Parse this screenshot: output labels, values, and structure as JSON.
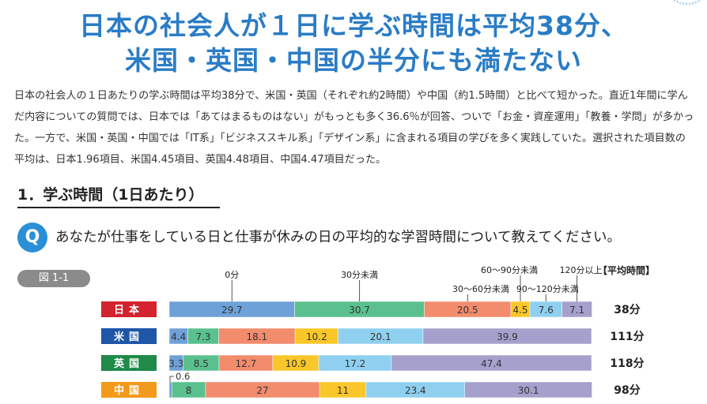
{
  "headline": {
    "line1": "日本の社会人が１日に学ぶ時間は平均38分、",
    "line2": "米国・英国・中国の半分にも満たない"
  },
  "intro": "日本の社会人の１日あたりの学ぶ時間は平均38分で、米国・英国（それぞれ約2時間）や中国（約1.5時間）と比べて短かった。直近1年間に学んだ内容についての質問では、日本では「あてはまるものはない」がもっとも多く36.6％が回答、ついで「お金・資産運用」「教養・学問」が多かった。一方で、米国・英国・中国では「IT系」「ビジネススキル系」「デザイン系」に含まれる項目の学びを多く実践していた。選択された項目数の平均は、日本1.96項目、米国4.45項目、英国4.48項目、中国4.47項目だった。",
  "section": {
    "heading": "1．学ぶ時間（1日あたり）"
  },
  "question": {
    "badge": "Q",
    "text": "あなたが仕事をしている日と仕事が休みの日の平均的な学習時間について教えてください。"
  },
  "figure": {
    "label": "図 1-1"
  },
  "colors": {
    "flag_red": "#d2232e",
    "flag_blue": "#1f56a8",
    "flag_green": "#1f8a4a",
    "flag_orange": "#f39a1a"
  },
  "chart_data": {
    "type": "bar",
    "orientation": "horizontal",
    "stacked": true,
    "categories": [
      "日本",
      "米国",
      "英国",
      "中国"
    ],
    "category_colors": [
      "#d2232e",
      "#1f56a8",
      "#1f8a4a",
      "#f39a1a"
    ],
    "series": [
      {
        "name": "0分",
        "color": "#6fa1d9",
        "values": [
          29.7,
          4.4,
          3.3,
          0.6
        ]
      },
      {
        "name": "30分未満",
        "color": "#5ac18e",
        "values": [
          30.7,
          7.3,
          8.5,
          8.0
        ]
      },
      {
        "name": "30〜60分未満",
        "color": "#f28c6c",
        "values": [
          20.5,
          18.1,
          12.7,
          27.0
        ]
      },
      {
        "name": "60〜90分未満",
        "color": "#f9c72a",
        "values": [
          4.5,
          10.2,
          10.9,
          11.0
        ]
      },
      {
        "name": "90〜120分未満",
        "color": "#8fd0f0",
        "values": [
          7.6,
          20.1,
          17.2,
          23.4
        ]
      },
      {
        "name": "120分以上",
        "color": "#a5a0cc",
        "values": [
          7.1,
          39.9,
          47.4,
          30.1
        ]
      }
    ],
    "average_header": "【平均時間】",
    "averages": [
      "38分",
      "111分",
      "118分",
      "98分"
    ],
    "xlim": [
      0,
      100
    ]
  }
}
